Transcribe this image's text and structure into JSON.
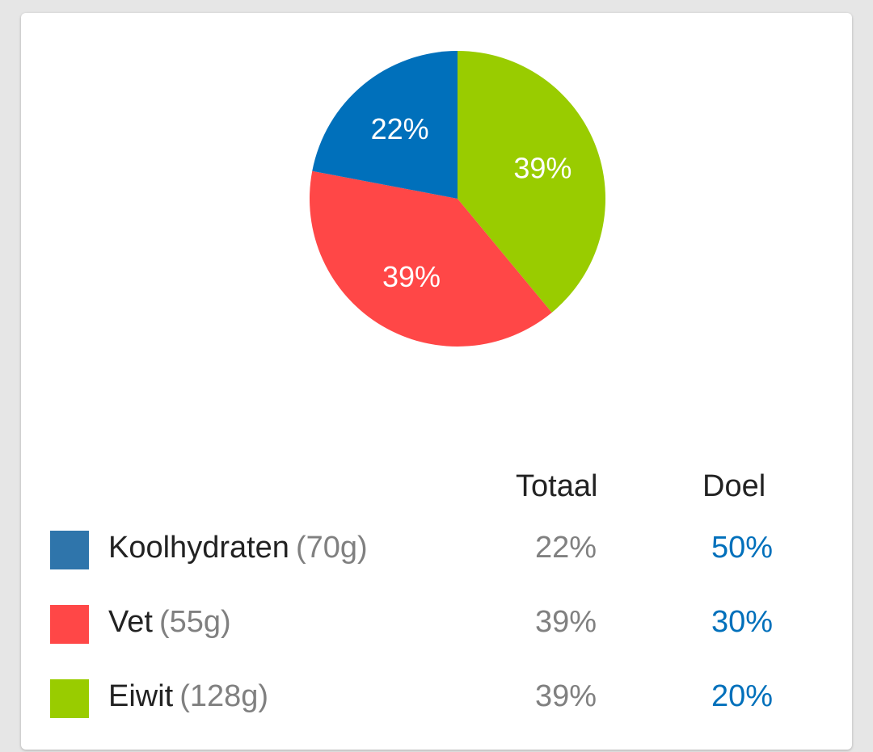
{
  "colors": {
    "background": "#e6e6e6",
    "card": "#ffffff",
    "carbs": "#0070bb",
    "fat": "#ff4747",
    "protein": "#99cc00",
    "goal_text": "#0070bb"
  },
  "chart_data": {
    "type": "pie",
    "slices": [
      {
        "label": "Eiwit",
        "value": 39,
        "display": "39%",
        "color": "#99cc00"
      },
      {
        "label": "Vet",
        "value": 39,
        "display": "39%",
        "color": "#ff4747"
      },
      {
        "label": "Koolhydraten",
        "value": 22,
        "display": "22%",
        "color": "#0070bb"
      }
    ],
    "start_angle_deg": 0,
    "direction": "clockwise"
  },
  "table": {
    "col_total": "Totaal",
    "col_goal": "Doel",
    "rows": [
      {
        "name": "Koolhydraten",
        "grams": "(70g)",
        "total": "22%",
        "goal": "50%",
        "swatch": "#2f75ab"
      },
      {
        "name": "Vet",
        "grams": "(55g)",
        "total": "39%",
        "goal": "30%",
        "swatch": "#ff4747"
      },
      {
        "name": "Eiwit",
        "grams": "(128g)",
        "total": "39%",
        "goal": "20%",
        "swatch": "#99cc00"
      }
    ]
  }
}
